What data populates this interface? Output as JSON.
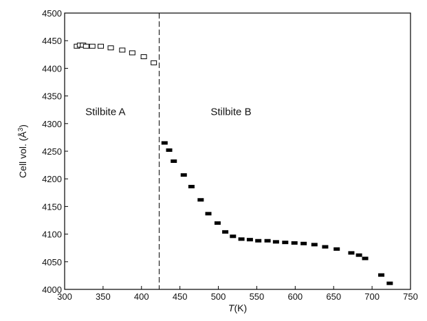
{
  "chart_data": {
    "type": "scatter",
    "title": "",
    "xlabel_italic": "T",
    "xlabel_unit": "(K)",
    "ylabel_main": "Cell vol. (Å",
    "ylabel_sup": "3",
    "ylabel_close": ")",
    "xlim": [
      300,
      750
    ],
    "ylim": [
      4000,
      4500
    ],
    "xticks": [
      300,
      350,
      400,
      450,
      500,
      550,
      600,
      650,
      700,
      750
    ],
    "yticks": [
      4000,
      4050,
      4100,
      4150,
      4200,
      4250,
      4300,
      4350,
      4400,
      4450,
      4500
    ],
    "grid": false,
    "transition_line_x": 423,
    "annotations": [
      {
        "text": "Stilbite A",
        "x": 327,
        "y": 4315
      },
      {
        "text": "Stilbite B",
        "x": 490,
        "y": 4315
      }
    ],
    "series": [
      {
        "marker": "open-square",
        "x": [
          316,
          320,
          324,
          328,
          336,
          347,
          360,
          375,
          388,
          403,
          416
        ],
        "y": [
          4440,
          4442,
          4442,
          4440,
          4440,
          4440,
          4437,
          4433,
          4428,
          4421,
          4410
        ]
      },
      {
        "marker": "filled-square",
        "x": [
          430,
          436,
          442,
          455,
          465,
          477,
          487,
          499,
          509,
          519,
          530,
          541,
          552,
          564,
          575,
          587,
          599,
          611,
          625,
          639,
          654,
          673,
          683,
          691,
          712,
          723
        ],
        "y": [
          4265,
          4252,
          4232,
          4207,
          4186,
          4162,
          4137,
          4120,
          4104,
          4096,
          4091,
          4090,
          4088,
          4088,
          4086,
          4085,
          4084,
          4083,
          4081,
          4077,
          4073,
          4066,
          4062,
          4056,
          4026,
          4011
        ]
      }
    ]
  }
}
